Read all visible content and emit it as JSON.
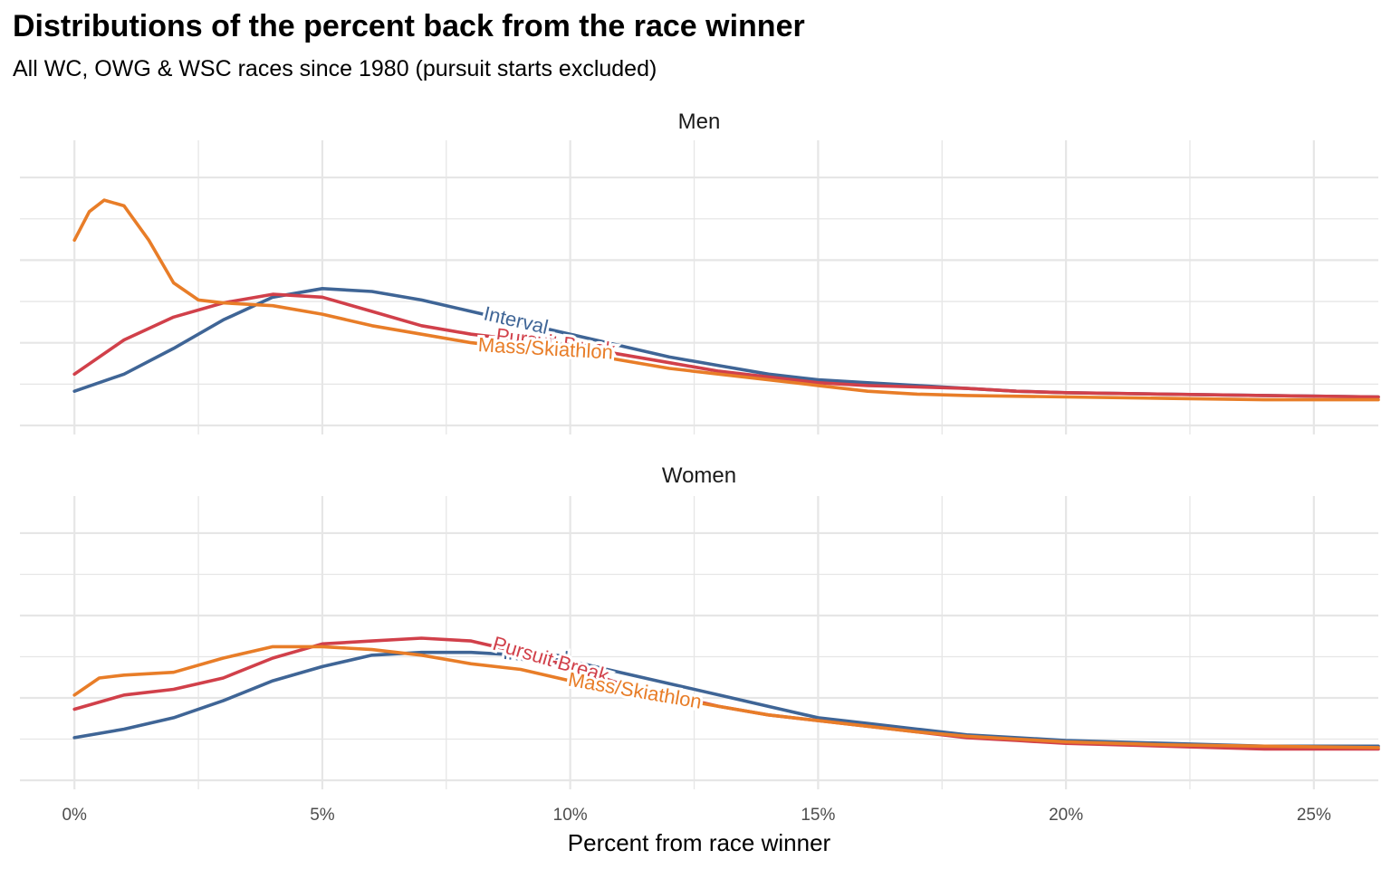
{
  "title": "Distributions of the percent back from the race winner",
  "subtitle": "All WC, OWG & WSC races since 1980 (pursuit starts excluded)",
  "colors": {
    "Interval": "#3f6596",
    "Pursuit Break": "#d1404a",
    "Mass/Skiathlon": "#e87d28",
    "grid": "#e6e6e6"
  },
  "chart_data": {
    "type": "line",
    "xlabel": "Percent from race winner",
    "ylabel": "",
    "xlim": [
      -1.1,
      26.3
    ],
    "x_ticks": [
      0,
      5,
      10,
      15,
      20,
      25
    ],
    "x_tick_labels": [
      "0%",
      "5%",
      "10%",
      "15%",
      "20%",
      "25%"
    ],
    "grid": true,
    "y_tick_labels_shown": false,
    "panels": [
      {
        "name": "Men",
        "ylim": [
          0,
          1.0
        ],
        "series": [
          {
            "name": "Interval",
            "label_at": 8.9,
            "points": [
              [
                0,
                0.12
              ],
              [
                1,
                0.18
              ],
              [
                2,
                0.27
              ],
              [
                3,
                0.37
              ],
              [
                4,
                0.45
              ],
              [
                5,
                0.48
              ],
              [
                6,
                0.47
              ],
              [
                7,
                0.44
              ],
              [
                8,
                0.4
              ],
              [
                9,
                0.36
              ],
              [
                10,
                0.32
              ],
              [
                11,
                0.28
              ],
              [
                12,
                0.24
              ],
              [
                13,
                0.21
              ],
              [
                14,
                0.18
              ],
              [
                15,
                0.16
              ],
              [
                16,
                0.15
              ],
              [
                17,
                0.14
              ],
              [
                18,
                0.13
              ],
              [
                19,
                0.12
              ],
              [
                20,
                0.115
              ],
              [
                22,
                0.11
              ],
              [
                24,
                0.105
              ],
              [
                26.3,
                0.1
              ]
            ]
          },
          {
            "name": "Pursuit Break",
            "label_at": 9.7,
            "points": [
              [
                0,
                0.18
              ],
              [
                1,
                0.3
              ],
              [
                2,
                0.38
              ],
              [
                3,
                0.43
              ],
              [
                4,
                0.46
              ],
              [
                5,
                0.45
              ],
              [
                6,
                0.4
              ],
              [
                7,
                0.35
              ],
              [
                8,
                0.32
              ],
              [
                9,
                0.3
              ],
              [
                10,
                0.28
              ],
              [
                11,
                0.25
              ],
              [
                12,
                0.22
              ],
              [
                13,
                0.19
              ],
              [
                14,
                0.17
              ],
              [
                15,
                0.15
              ],
              [
                16,
                0.14
              ],
              [
                17,
                0.135
              ],
              [
                18,
                0.13
              ],
              [
                19,
                0.12
              ],
              [
                20,
                0.115
              ],
              [
                22,
                0.11
              ],
              [
                24,
                0.105
              ],
              [
                26.3,
                0.1
              ]
            ]
          },
          {
            "name": "Mass/Skiathlon",
            "label_at": 9.5,
            "points": [
              [
                0,
                0.65
              ],
              [
                0.3,
                0.75
              ],
              [
                0.6,
                0.79
              ],
              [
                1,
                0.77
              ],
              [
                1.5,
                0.65
              ],
              [
                2,
                0.5
              ],
              [
                2.5,
                0.44
              ],
              [
                3,
                0.43
              ],
              [
                4,
                0.42
              ],
              [
                5,
                0.39
              ],
              [
                6,
                0.35
              ],
              [
                7,
                0.32
              ],
              [
                8,
                0.29
              ],
              [
                9,
                0.27
              ],
              [
                10,
                0.26
              ],
              [
                11,
                0.23
              ],
              [
                12,
                0.2
              ],
              [
                13,
                0.18
              ],
              [
                14,
                0.16
              ],
              [
                15,
                0.14
              ],
              [
                16,
                0.12
              ],
              [
                17,
                0.11
              ],
              [
                18,
                0.105
              ],
              [
                20,
                0.1
              ],
              [
                22,
                0.095
              ],
              [
                24,
                0.09
              ],
              [
                26.3,
                0.09
              ]
            ]
          }
        ]
      },
      {
        "name": "Women",
        "ylim": [
          0,
          1.0
        ],
        "series": [
          {
            "name": "Interval",
            "label_at": 9.3,
            "points": [
              [
                0,
                0.15
              ],
              [
                1,
                0.18
              ],
              [
                2,
                0.22
              ],
              [
                3,
                0.28
              ],
              [
                4,
                0.35
              ],
              [
                5,
                0.4
              ],
              [
                6,
                0.44
              ],
              [
                7,
                0.45
              ],
              [
                8,
                0.45
              ],
              [
                9,
                0.44
              ],
              [
                10,
                0.42
              ],
              [
                11,
                0.38
              ],
              [
                12,
                0.34
              ],
              [
                13,
                0.3
              ],
              [
                14,
                0.26
              ],
              [
                15,
                0.22
              ],
              [
                16,
                0.2
              ],
              [
                17,
                0.18
              ],
              [
                18,
                0.16
              ],
              [
                19,
                0.15
              ],
              [
                20,
                0.14
              ],
              [
                22,
                0.13
              ],
              [
                24,
                0.12
              ],
              [
                26.3,
                0.12
              ]
            ]
          },
          {
            "name": "Pursuit Break",
            "label_at": 9.6,
            "points": [
              [
                0,
                0.25
              ],
              [
                1,
                0.3
              ],
              [
                2,
                0.32
              ],
              [
                3,
                0.36
              ],
              [
                4,
                0.43
              ],
              [
                5,
                0.48
              ],
              [
                6,
                0.49
              ],
              [
                7,
                0.5
              ],
              [
                8,
                0.49
              ],
              [
                9,
                0.45
              ],
              [
                10,
                0.4
              ],
              [
                11,
                0.34
              ],
              [
                12,
                0.3
              ],
              [
                13,
                0.26
              ],
              [
                14,
                0.23
              ],
              [
                15,
                0.21
              ],
              [
                16,
                0.19
              ],
              [
                17,
                0.17
              ],
              [
                18,
                0.15
              ],
              [
                19,
                0.14
              ],
              [
                20,
                0.13
              ],
              [
                22,
                0.12
              ],
              [
                24,
                0.11
              ],
              [
                26.3,
                0.11
              ]
            ]
          },
          {
            "name": "Mass/Skiathlon",
            "label_at": 11.3,
            "points": [
              [
                0,
                0.3
              ],
              [
                0.5,
                0.36
              ],
              [
                1,
                0.37
              ],
              [
                2,
                0.38
              ],
              [
                3,
                0.43
              ],
              [
                4,
                0.47
              ],
              [
                5,
                0.47
              ],
              [
                6,
                0.46
              ],
              [
                7,
                0.44
              ],
              [
                8,
                0.41
              ],
              [
                9,
                0.39
              ],
              [
                10,
                0.35
              ],
              [
                11,
                0.32
              ],
              [
                12,
                0.29
              ],
              [
                13,
                0.26
              ],
              [
                14,
                0.23
              ],
              [
                15,
                0.21
              ],
              [
                16,
                0.19
              ],
              [
                17,
                0.17
              ],
              [
                18,
                0.155
              ],
              [
                19,
                0.145
              ],
              [
                20,
                0.135
              ],
              [
                22,
                0.125
              ],
              [
                24,
                0.12
              ],
              [
                26.3,
                0.115
              ]
            ]
          }
        ]
      }
    ]
  }
}
